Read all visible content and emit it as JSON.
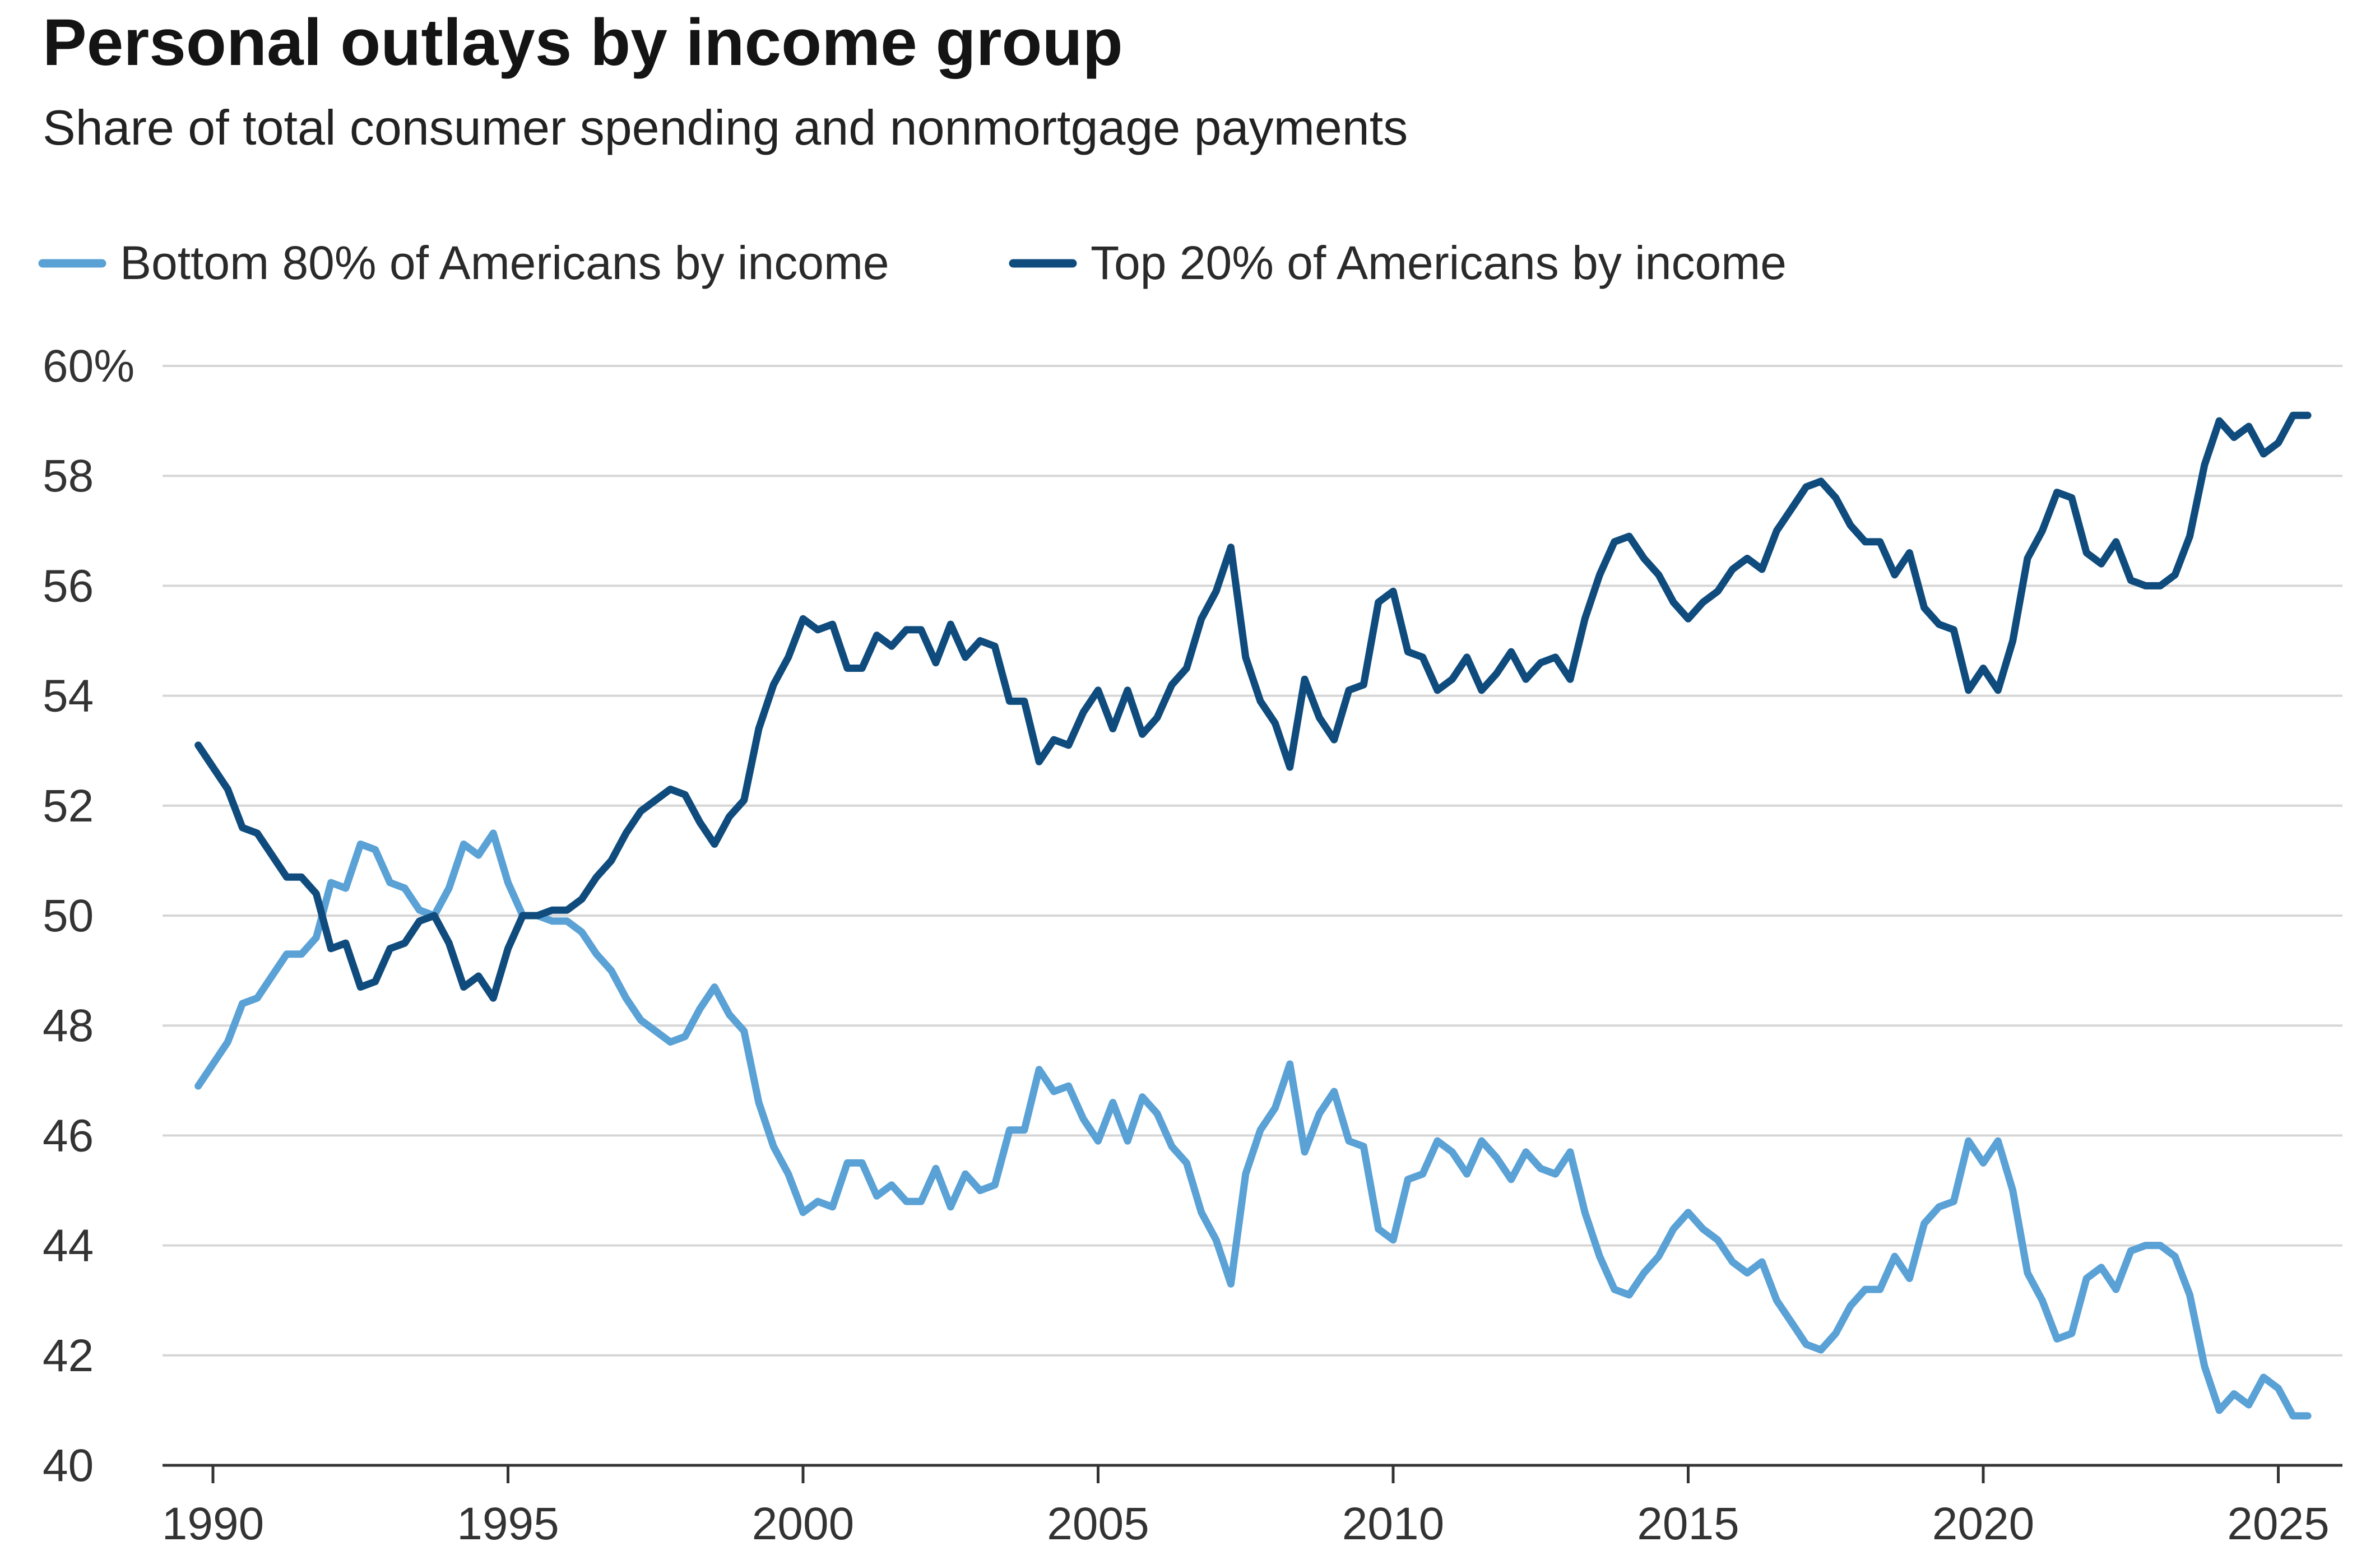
{
  "chart_data": {
    "type": "line",
    "title": "Personal outlays by income group",
    "subtitle": "Share of total consumer spending and nonmortgage payments",
    "xlabel": "",
    "ylabel": "",
    "xlim": [
      1989.5,
      2025.9
    ],
    "ylim": [
      40,
      60
    ],
    "grid": true,
    "legend_position": "top-left",
    "y_ticks": [
      60,
      58,
      56,
      54,
      52,
      50,
      48,
      46,
      44,
      42,
      40
    ],
    "y_tick_labels": [
      "60%",
      "58",
      "56",
      "54",
      "52",
      "50",
      "48",
      "46",
      "44",
      "42",
      "40"
    ],
    "x_ticks": [
      1990,
      1995,
      2000,
      2005,
      2010,
      2015,
      2020,
      2025
    ],
    "x_tick_labels": [
      "1990",
      "1995",
      "2000",
      "2005",
      "2010",
      "2015",
      "2020",
      "2025"
    ],
    "colors": {
      "bottom80": "#5aa1d6",
      "top20": "#0f4c7d",
      "grid": "#d6d6d6",
      "axis": "#333333"
    },
    "series": [
      {
        "name": "Bottom 80% of Americans by income",
        "color": "#5aa1d6",
        "x": [
          1989.75,
          1990.0,
          1990.25,
          1990.5,
          1990.75,
          1991.0,
          1991.25,
          1991.5,
          1991.75,
          1992.0,
          1992.25,
          1992.5,
          1992.75,
          1993.0,
          1993.25,
          1993.5,
          1993.75,
          1994.0,
          1994.25,
          1994.5,
          1994.75,
          1995.0,
          1995.25,
          1995.5,
          1995.75,
          1996.0,
          1996.25,
          1996.5,
          1996.75,
          1997.0,
          1997.25,
          1997.5,
          1997.75,
          1998.0,
          1998.25,
          1998.5,
          1998.75,
          1999.0,
          1999.25,
          1999.5,
          1999.75,
          2000.0,
          2000.25,
          2000.5,
          2000.75,
          2001.0,
          2001.25,
          2001.5,
          2001.75,
          2002.0,
          2002.25,
          2002.5,
          2002.75,
          2003.0,
          2003.25,
          2003.5,
          2003.75,
          2004.0,
          2004.25,
          2004.5,
          2004.75,
          2005.0,
          2005.25,
          2005.5,
          2005.75,
          2006.0,
          2006.25,
          2006.5,
          2006.75,
          2007.0,
          2007.25,
          2007.5,
          2007.75,
          2008.0,
          2008.25,
          2008.5,
          2008.75,
          2009.0,
          2009.25,
          2009.5,
          2009.75,
          2010.0,
          2010.25,
          2010.5,
          2010.75,
          2011.0,
          2011.25,
          2011.5,
          2011.75,
          2012.0,
          2012.25,
          2012.5,
          2012.75,
          2013.0,
          2013.25,
          2013.5,
          2013.75,
          2014.0,
          2014.25,
          2014.5,
          2014.75,
          2015.0,
          2015.25,
          2015.5,
          2015.75,
          2016.0,
          2016.25,
          2016.5,
          2016.75,
          2017.0,
          2017.25,
          2017.5,
          2017.75,
          2018.0,
          2018.25,
          2018.5,
          2018.75,
          2019.0,
          2019.25,
          2019.5,
          2019.75,
          2020.0,
          2020.25,
          2020.5,
          2020.75,
          2021.0,
          2021.25,
          2021.5,
          2021.75,
          2022.0,
          2022.25,
          2022.5,
          2022.75,
          2023.0,
          2023.25,
          2023.5,
          2023.75,
          2024.0,
          2024.25,
          2024.5,
          2024.75,
          2025.0,
          2025.25,
          2025.5
        ],
        "values": [
          46.9,
          47.3,
          47.7,
          48.4,
          48.5,
          48.9,
          49.3,
          49.3,
          49.6,
          50.6,
          50.5,
          51.3,
          51.2,
          50.6,
          50.5,
          50.1,
          50.0,
          50.5,
          51.3,
          51.1,
          51.5,
          50.6,
          50.0,
          50.0,
          49.9,
          49.9,
          49.7,
          49.3,
          49.0,
          48.5,
          48.1,
          47.9,
          47.7,
          47.8,
          48.3,
          48.7,
          48.2,
          47.9,
          46.6,
          45.8,
          45.3,
          44.6,
          44.8,
          44.7,
          45.5,
          45.5,
          44.9,
          45.1,
          44.8,
          44.8,
          45.4,
          44.7,
          45.3,
          45.0,
          45.1,
          46.1,
          46.1,
          47.2,
          46.8,
          46.9,
          46.3,
          45.9,
          46.6,
          45.9,
          46.7,
          46.4,
          45.8,
          45.5,
          44.6,
          44.1,
          43.3,
          45.3,
          46.1,
          46.5,
          47.3,
          45.7,
          46.4,
          46.8,
          45.9,
          45.8,
          44.3,
          44.1,
          45.2,
          45.3,
          45.9,
          45.7,
          45.3,
          45.9,
          45.6,
          45.2,
          45.7,
          45.4,
          45.3,
          45.7,
          44.6,
          43.8,
          43.2,
          43.1,
          43.5,
          43.8,
          44.3,
          44.6,
          44.3,
          44.1,
          43.7,
          43.5,
          43.7,
          43.0,
          42.6,
          42.2,
          42.1,
          42.4,
          42.9,
          43.2,
          43.2,
          43.8,
          43.4,
          44.4,
          44.7,
          44.8,
          45.9,
          45.5,
          45.9,
          45.0,
          43.5,
          43.0,
          42.3,
          42.4,
          43.4,
          43.6,
          43.2,
          43.9,
          44.0,
          44.0,
          43.8,
          43.1,
          41.8,
          41.0,
          41.3,
          41.1,
          41.6,
          41.4,
          40.9,
          40.9
        ]
      },
      {
        "name": "Top 20% of Americans by income",
        "color": "#0f4c7d",
        "x": [
          1989.75,
          1990.0,
          1990.25,
          1990.5,
          1990.75,
          1991.0,
          1991.25,
          1991.5,
          1991.75,
          1992.0,
          1992.25,
          1992.5,
          1992.75,
          1993.0,
          1993.25,
          1993.5,
          1993.75,
          1994.0,
          1994.25,
          1994.5,
          1994.75,
          1995.0,
          1995.25,
          1995.5,
          1995.75,
          1996.0,
          1996.25,
          1996.5,
          1996.75,
          1997.0,
          1997.25,
          1997.5,
          1997.75,
          1998.0,
          1998.25,
          1998.5,
          1998.75,
          1999.0,
          1999.25,
          1999.5,
          1999.75,
          2000.0,
          2000.25,
          2000.5,
          2000.75,
          2001.0,
          2001.25,
          2001.5,
          2001.75,
          2002.0,
          2002.25,
          2002.5,
          2002.75,
          2003.0,
          2003.25,
          2003.5,
          2003.75,
          2004.0,
          2004.25,
          2004.5,
          2004.75,
          2005.0,
          2005.25,
          2005.5,
          2005.75,
          2006.0,
          2006.25,
          2006.5,
          2006.75,
          2007.0,
          2007.25,
          2007.5,
          2007.75,
          2008.0,
          2008.25,
          2008.5,
          2008.75,
          2009.0,
          2009.25,
          2009.5,
          2009.75,
          2010.0,
          2010.25,
          2010.5,
          2010.75,
          2011.0,
          2011.25,
          2011.5,
          2011.75,
          2012.0,
          2012.25,
          2012.5,
          2012.75,
          2013.0,
          2013.25,
          2013.5,
          2013.75,
          2014.0,
          2014.25,
          2014.5,
          2014.75,
          2015.0,
          2015.25,
          2015.5,
          2015.75,
          2016.0,
          2016.25,
          2016.5,
          2016.75,
          2017.0,
          2017.25,
          2017.5,
          2017.75,
          2018.0,
          2018.25,
          2018.5,
          2018.75,
          2019.0,
          2019.25,
          2019.5,
          2019.75,
          2020.0,
          2020.25,
          2020.5,
          2020.75,
          2021.0,
          2021.25,
          2021.5,
          2021.75,
          2022.0,
          2022.25,
          2022.5,
          2022.75,
          2023.0,
          2023.25,
          2023.5,
          2023.75,
          2024.0,
          2024.25,
          2024.5,
          2024.75,
          2025.0,
          2025.25,
          2025.5
        ],
        "values": [
          53.1,
          52.7,
          52.3,
          51.6,
          51.5,
          51.1,
          50.7,
          50.7,
          50.4,
          49.4,
          49.5,
          48.7,
          48.8,
          49.4,
          49.5,
          49.9,
          50.0,
          49.5,
          48.7,
          48.9,
          48.5,
          49.4,
          50.0,
          50.0,
          50.1,
          50.1,
          50.3,
          50.7,
          51.0,
          51.5,
          51.9,
          52.1,
          52.3,
          52.2,
          51.7,
          51.3,
          51.8,
          52.1,
          53.4,
          54.2,
          54.7,
          55.4,
          55.2,
          55.3,
          54.5,
          54.5,
          55.1,
          54.9,
          55.2,
          55.2,
          54.6,
          55.3,
          54.7,
          55.0,
          54.9,
          53.9,
          53.9,
          52.8,
          53.2,
          53.1,
          53.7,
          54.1,
          53.4,
          54.1,
          53.3,
          53.6,
          54.2,
          54.5,
          55.4,
          55.9,
          56.7,
          54.7,
          53.9,
          53.5,
          52.7,
          54.3,
          53.6,
          53.2,
          54.1,
          54.2,
          55.7,
          55.9,
          54.8,
          54.7,
          54.1,
          54.3,
          54.7,
          54.1,
          54.4,
          54.8,
          54.3,
          54.6,
          54.7,
          54.3,
          55.4,
          56.2,
          56.8,
          56.9,
          56.5,
          56.2,
          55.7,
          55.4,
          55.7,
          55.9,
          56.3,
          56.5,
          56.3,
          57.0,
          57.4,
          57.8,
          57.9,
          57.6,
          57.1,
          56.8,
          56.8,
          56.2,
          56.6,
          55.6,
          55.3,
          55.2,
          54.1,
          54.5,
          54.1,
          55.0,
          56.5,
          57.0,
          57.7,
          57.6,
          56.6,
          56.4,
          56.8,
          56.1,
          56.0,
          56.0,
          56.2,
          56.9,
          58.2,
          59.0,
          58.7,
          58.9,
          58.4,
          58.6,
          59.1,
          59.1
        ]
      }
    ]
  }
}
